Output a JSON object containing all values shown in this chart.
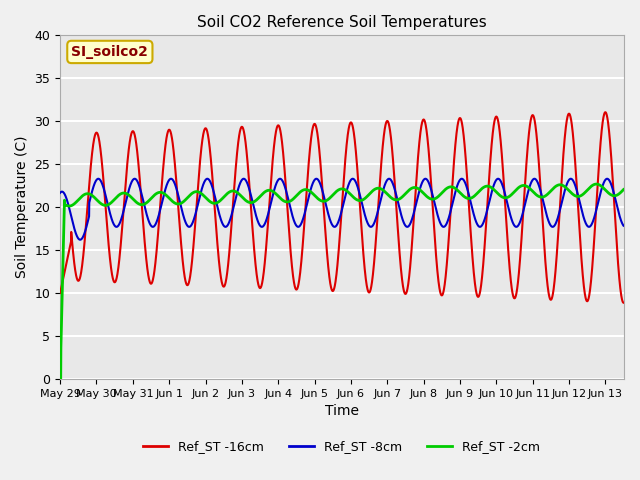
{
  "title": "Soil CO2 Reference Soil Temperatures",
  "xlabel": "Time",
  "ylabel": "Soil Temperature (C)",
  "ylim": [
    0,
    40
  ],
  "yticks": [
    0,
    5,
    10,
    15,
    20,
    25,
    30,
    35,
    40
  ],
  "annotation_text": "SI_soilco2",
  "annotation_bg": "#ffffcc",
  "annotation_border": "#ccaa00",
  "annotation_text_color": "#880000",
  "line_16cm_color": "#dd0000",
  "line_8cm_color": "#0000cc",
  "line_2cm_color": "#00cc00",
  "legend_labels": [
    "Ref_ST -16cm",
    "Ref_ST -8cm",
    "Ref_ST -2cm"
  ],
  "background_color": "#e8e8e8",
  "grid_color": "#ffffff",
  "num_days": 15.5,
  "tick_labels": [
    "May 29",
    "May 30",
    "May 31",
    "Jun 1",
    "Jun 2",
    "Jun 3",
    "Jun 4",
    "Jun 5",
    "Jun 6",
    "Jun 7",
    "Jun 8",
    "Jun 9",
    "Jun 10",
    "Jun 11",
    "Jun 12",
    "Jun 13"
  ]
}
